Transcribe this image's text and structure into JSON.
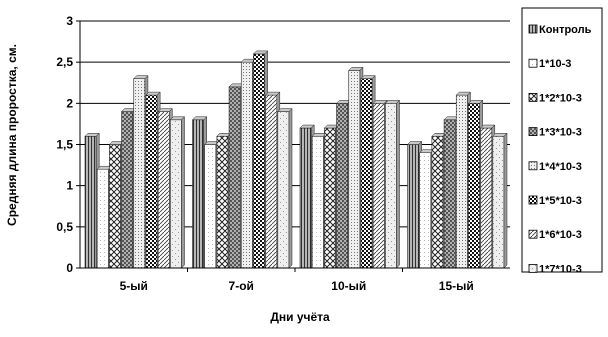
{
  "chart_data": {
    "type": "bar",
    "xlabel": "Дни учёта",
    "ylabel": "Средняя длина проростка, см.",
    "ylim": [
      0,
      3
    ],
    "yticks": [
      "0",
      "0,5",
      "1",
      "1,5",
      "2",
      "2,5",
      "3"
    ],
    "grid": "horizontal",
    "legend_position": "right",
    "categories": [
      "5-ый",
      "7-ой",
      "10-ый",
      "15-ый"
    ],
    "series": [
      {
        "name": "Контроль",
        "values": [
          1.6,
          1.8,
          1.7,
          1.5
        ]
      },
      {
        "name": "1*10-3",
        "values": [
          1.2,
          1.5,
          1.6,
          1.4
        ]
      },
      {
        "name": "1*2*10-3",
        "values": [
          1.5,
          1.6,
          1.7,
          1.6
        ]
      },
      {
        "name": "1*3*10-3",
        "values": [
          1.9,
          2.2,
          2.0,
          1.8
        ]
      },
      {
        "name": "1*4*10-3",
        "values": [
          2.3,
          2.5,
          2.4,
          2.1
        ]
      },
      {
        "name": "1*5*10-3",
        "values": [
          2.1,
          2.6,
          2.3,
          2.0
        ]
      },
      {
        "name": "1*6*10-3",
        "values": [
          1.9,
          2.1,
          2.0,
          1.7
        ]
      },
      {
        "name": "1*7*10-3",
        "values": [
          1.8,
          1.9,
          2.0,
          1.6
        ]
      }
    ]
  }
}
